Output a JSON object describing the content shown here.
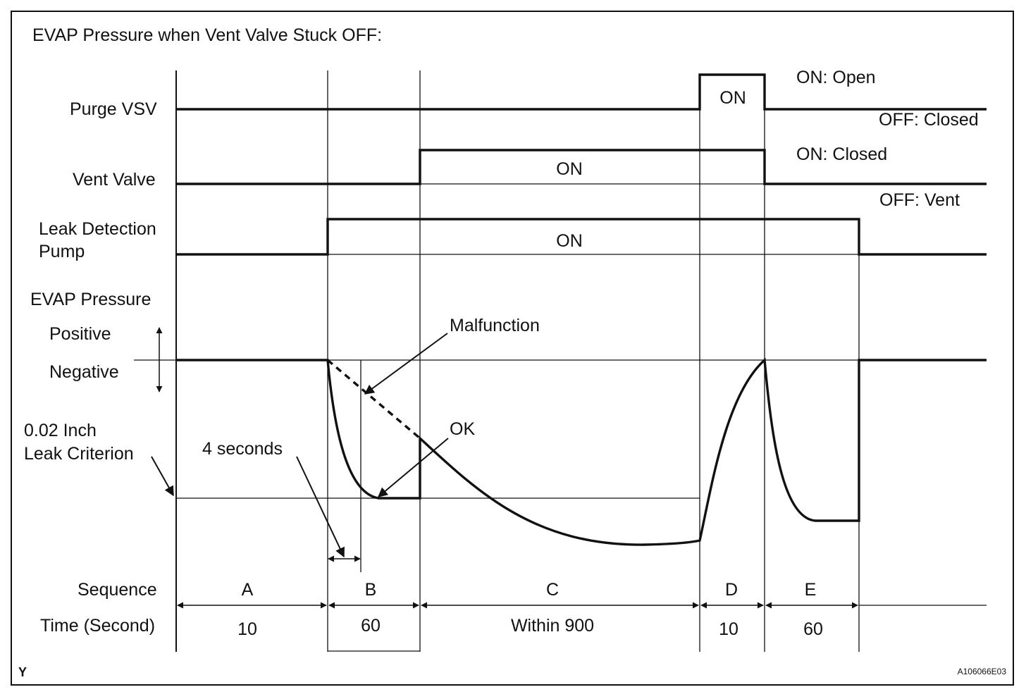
{
  "title": "EVAP Pressure when Vent Valve Stuck OFF:",
  "signals": {
    "purge_vsv": {
      "label": "Purge VSV",
      "pulse_label": "ON",
      "on_state": "ON: Open",
      "off_state": "OFF: Closed"
    },
    "vent_valve": {
      "label": "Vent Valve",
      "pulse_label": "ON",
      "on_state": "ON: Closed",
      "off_state": "OFF: Vent"
    },
    "leak_detection_pump": {
      "label_line1": "Leak Detection",
      "label_line2": "Pump",
      "pulse_label": "ON"
    }
  },
  "pressure": {
    "label": "EVAP Pressure",
    "positive": "Positive",
    "negative": "Negative",
    "criterion_line1": "0.02 Inch",
    "criterion_line2": "Leak Criterion",
    "malfunction": "Malfunction",
    "ok": "OK",
    "four_seconds": "4 seconds"
  },
  "sequence": {
    "row_label": "Sequence",
    "time_label": "Time (Second)",
    "phases": [
      {
        "name": "A",
        "time": "10"
      },
      {
        "name": "B",
        "time": "60"
      },
      {
        "name": "C",
        "time": "Within 900"
      },
      {
        "name": "D",
        "time": "10"
      },
      {
        "name": "E",
        "time": "60"
      }
    ]
  },
  "corner_mark": "Y",
  "figure_id": "A106066E03"
}
